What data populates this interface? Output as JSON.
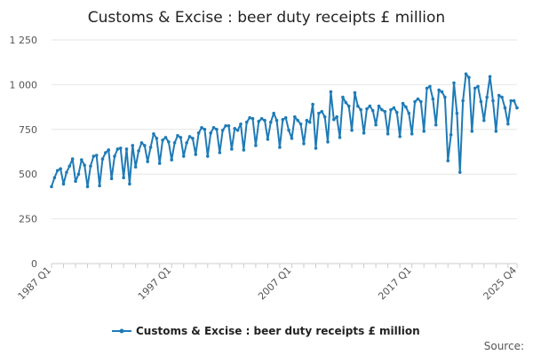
{
  "colors": {
    "series": "#1f7bb6",
    "grid": "#e6e6e6",
    "axis": "#cccccc",
    "text": "#222222"
  },
  "source_label": "Source:",
  "chart_data": {
    "type": "line",
    "title": "Customs & Excise : beer duty receipts £ million",
    "xlabel": "",
    "ylabel": "",
    "grid": true,
    "legend_position": "bottom-center",
    "ylim": [
      0,
      1250
    ],
    "y_ticks": [
      0,
      250,
      500,
      750,
      1000,
      1250
    ],
    "y_tick_labels": [
      "0",
      "250",
      "500",
      "750",
      "1 000",
      "1 250"
    ],
    "x_tick_labels": [
      "1987 Q1",
      "1997 Q1",
      "2007 Q1",
      "2017 Q1",
      "2025 Q4"
    ],
    "x": [
      "1987 Q1",
      "1987 Q2",
      "1987 Q3",
      "1987 Q4",
      "1988 Q1",
      "1988 Q2",
      "1988 Q3",
      "1988 Q4",
      "1989 Q1",
      "1989 Q2",
      "1989 Q3",
      "1989 Q4",
      "1990 Q1",
      "1990 Q2",
      "1990 Q3",
      "1990 Q4",
      "1991 Q1",
      "1991 Q2",
      "1991 Q3",
      "1991 Q4",
      "1992 Q1",
      "1992 Q2",
      "1992 Q3",
      "1992 Q4",
      "1993 Q1",
      "1993 Q2",
      "1993 Q3",
      "1993 Q4",
      "1994 Q1",
      "1994 Q2",
      "1994 Q3",
      "1994 Q4",
      "1995 Q1",
      "1995 Q2",
      "1995 Q3",
      "1995 Q4",
      "1996 Q1",
      "1996 Q2",
      "1996 Q3",
      "1996 Q4",
      "1997 Q1",
      "1997 Q2",
      "1997 Q3",
      "1997 Q4",
      "1998 Q1",
      "1998 Q2",
      "1998 Q3",
      "1998 Q4",
      "1999 Q1",
      "1999 Q2",
      "1999 Q3",
      "1999 Q4",
      "2000 Q1",
      "2000 Q2",
      "2000 Q3",
      "2000 Q4",
      "2001 Q1",
      "2001 Q2",
      "2001 Q3",
      "2001 Q4",
      "2002 Q1",
      "2002 Q2",
      "2002 Q3",
      "2002 Q4",
      "2003 Q1",
      "2003 Q2",
      "2003 Q3",
      "2003 Q4",
      "2004 Q1",
      "2004 Q2",
      "2004 Q3",
      "2004 Q4",
      "2005 Q1",
      "2005 Q2",
      "2005 Q3",
      "2005 Q4",
      "2006 Q1",
      "2006 Q2",
      "2006 Q3",
      "2006 Q4",
      "2007 Q1",
      "2007 Q2",
      "2007 Q3",
      "2007 Q4",
      "2008 Q1",
      "2008 Q2",
      "2008 Q3",
      "2008 Q4",
      "2009 Q1",
      "2009 Q2",
      "2009 Q3",
      "2009 Q4",
      "2010 Q1",
      "2010 Q2",
      "2010 Q3",
      "2010 Q4",
      "2011 Q1",
      "2011 Q2",
      "2011 Q3",
      "2011 Q4",
      "2012 Q1",
      "2012 Q2",
      "2012 Q3",
      "2012 Q4",
      "2013 Q1",
      "2013 Q2",
      "2013 Q3",
      "2013 Q4",
      "2014 Q1",
      "2014 Q2",
      "2014 Q3",
      "2014 Q4",
      "2015 Q1",
      "2015 Q2",
      "2015 Q3",
      "2015 Q4",
      "2016 Q1",
      "2016 Q2",
      "2016 Q3",
      "2016 Q4",
      "2017 Q1",
      "2017 Q2",
      "2017 Q3",
      "2017 Q4",
      "2018 Q1",
      "2018 Q2",
      "2018 Q3",
      "2018 Q4",
      "2019 Q1",
      "2019 Q2",
      "2019 Q3",
      "2019 Q4",
      "2020 Q1",
      "2020 Q2",
      "2020 Q3",
      "2020 Q4",
      "2021 Q1",
      "2021 Q2",
      "2021 Q3",
      "2021 Q4",
      "2022 Q1",
      "2022 Q2",
      "2022 Q3",
      "2022 Q4",
      "2023 Q1",
      "2023 Q2",
      "2023 Q3",
      "2023 Q4",
      "2024 Q1",
      "2024 Q2",
      "2024 Q3",
      "2024 Q4",
      "2025 Q1",
      "2025 Q2",
      "2025 Q3",
      "2025 Q4"
    ],
    "series": [
      {
        "name": "Customs & Excise : beer duty receipts £ million",
        "values": [
          430,
          480,
          520,
          530,
          445,
          510,
          545,
          585,
          460,
          500,
          580,
          550,
          430,
          545,
          600,
          605,
          435,
          585,
          620,
          635,
          475,
          600,
          640,
          645,
          480,
          640,
          445,
          660,
          540,
          630,
          675,
          660,
          570,
          650,
          725,
          700,
          560,
          690,
          705,
          680,
          580,
          675,
          715,
          705,
          600,
          675,
          710,
          700,
          610,
          730,
          760,
          750,
          600,
          730,
          760,
          750,
          620,
          745,
          770,
          770,
          640,
          755,
          745,
          780,
          635,
          790,
          815,
          810,
          660,
          795,
          810,
          800,
          695,
          790,
          840,
          800,
          650,
          805,
          815,
          745,
          700,
          820,
          800,
          780,
          670,
          800,
          790,
          890,
          645,
          840,
          850,
          820,
          680,
          960,
          805,
          820,
          705,
          930,
          900,
          880,
          745,
          955,
          880,
          860,
          730,
          865,
          880,
          855,
          775,
          880,
          860,
          850,
          725,
          860,
          870,
          845,
          710,
          895,
          875,
          840,
          725,
          905,
          920,
          905,
          740,
          980,
          990,
          920,
          775,
          970,
          960,
          930,
          575,
          720,
          1010,
          840,
          510,
          910,
          1060,
          1040,
          740,
          980,
          990,
          905,
          800,
          930,
          1045,
          910,
          740,
          940,
          930,
          870,
          780,
          910,
          910,
          870
        ]
      }
    ]
  }
}
